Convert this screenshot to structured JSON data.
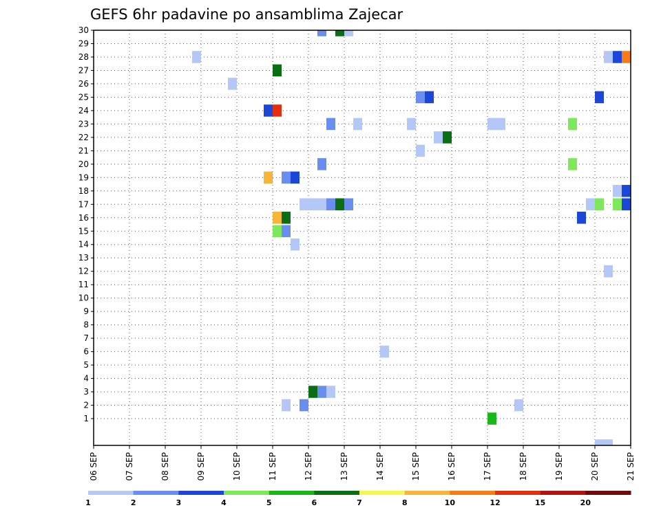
{
  "chart_data": {
    "type": "heatmap",
    "title": "GEFS 6hr padavine po ansamblima Zajecar",
    "xlabel": "",
    "ylabel": "",
    "x_tick_labels": [
      "06 SEP",
      "07 SEP",
      "08 SEP",
      "09 SEP",
      "10 SEP",
      "11 SEP",
      "12 SEP",
      "13 SEP",
      "14 SEP",
      "15 SEP",
      "16 SEP",
      "17 SEP",
      "18 SEP",
      "19 SEP",
      "20 SEP",
      "21 SEP"
    ],
    "xlim_days": [
      0,
      15
    ],
    "steps_per_day": 4,
    "y_tick_labels": [
      "1",
      "2",
      "3",
      "4",
      "5",
      "6",
      "7",
      "8",
      "9",
      "10",
      "11",
      "12",
      "13",
      "14",
      "15",
      "16",
      "17",
      "18",
      "19",
      "20",
      "21",
      "22",
      "23",
      "24",
      "25",
      "26",
      "27",
      "28",
      "29",
      "30"
    ],
    "ylim": [
      0,
      30
    ],
    "grid": true,
    "colorbar": {
      "position": "bottom",
      "colors": [
        "#b4c8f8",
        "#6a8ef0",
        "#1c46d8",
        "#7ce85a",
        "#18b818",
        "#0a6e12",
        "#f8f850",
        "#f8b438",
        "#f87c14",
        "#e03010",
        "#b41210",
        "#6e0a0a"
      ],
      "labels": [
        "1",
        "2",
        "3",
        "4",
        "5",
        "6",
        "7",
        "8",
        "10",
        "12",
        "15",
        "20"
      ]
    },
    "cells": [
      {
        "member": 30,
        "step": 25,
        "cat": 1
      },
      {
        "member": 30,
        "step": 27,
        "cat": 5
      },
      {
        "member": 30,
        "step": 28,
        "cat": 0
      },
      {
        "member": 28,
        "step": 11,
        "cat": 0
      },
      {
        "member": 28,
        "step": 57,
        "cat": 0
      },
      {
        "member": 28,
        "step": 58,
        "cat": 2
      },
      {
        "member": 28,
        "step": 59,
        "cat": 8
      },
      {
        "member": 27,
        "step": 20,
        "cat": 5
      },
      {
        "member": 26,
        "step": 15,
        "cat": 0
      },
      {
        "member": 25,
        "step": 36,
        "cat": 1
      },
      {
        "member": 25,
        "step": 37,
        "cat": 2
      },
      {
        "member": 25,
        "step": 56,
        "cat": 2
      },
      {
        "member": 24,
        "step": 19,
        "cat": 2
      },
      {
        "member": 24,
        "step": 20,
        "cat": 9
      },
      {
        "member": 23,
        "step": 26,
        "cat": 1
      },
      {
        "member": 23,
        "step": 29,
        "cat": 0
      },
      {
        "member": 23,
        "step": 35,
        "cat": 0
      },
      {
        "member": 23,
        "step": 44,
        "cat": 0
      },
      {
        "member": 23,
        "step": 45,
        "cat": 0
      },
      {
        "member": 23,
        "step": 53,
        "cat": 3
      },
      {
        "member": 22,
        "step": 38,
        "cat": 0
      },
      {
        "member": 22,
        "step": 39,
        "cat": 5
      },
      {
        "member": 21,
        "step": 36,
        "cat": 0
      },
      {
        "member": 20,
        "step": 25,
        "cat": 1
      },
      {
        "member": 20,
        "step": 53,
        "cat": 3
      },
      {
        "member": 19,
        "step": 19,
        "cat": 7
      },
      {
        "member": 19,
        "step": 21,
        "cat": 1
      },
      {
        "member": 19,
        "step": 22,
        "cat": 2
      },
      {
        "member": 18,
        "step": 58,
        "cat": 0
      },
      {
        "member": 18,
        "step": 59,
        "cat": 2
      },
      {
        "member": 17,
        "step": 23,
        "cat": 0
      },
      {
        "member": 17,
        "step": 24,
        "cat": 0
      },
      {
        "member": 17,
        "step": 25,
        "cat": 0
      },
      {
        "member": 17,
        "step": 26,
        "cat": 1
      },
      {
        "member": 17,
        "step": 27,
        "cat": 5
      },
      {
        "member": 17,
        "step": 28,
        "cat": 1
      },
      {
        "member": 17,
        "step": 55,
        "cat": 0
      },
      {
        "member": 17,
        "step": 56,
        "cat": 3
      },
      {
        "member": 17,
        "step": 58,
        "cat": 3
      },
      {
        "member": 17,
        "step": 59,
        "cat": 2
      },
      {
        "member": 16,
        "step": 20,
        "cat": 7
      },
      {
        "member": 16,
        "step": 21,
        "cat": 5
      },
      {
        "member": 16,
        "step": 54,
        "cat": 2
      },
      {
        "member": 15,
        "step": 20,
        "cat": 3
      },
      {
        "member": 15,
        "step": 21,
        "cat": 1
      },
      {
        "member": 14,
        "step": 22,
        "cat": 0
      },
      {
        "member": 12,
        "step": 57,
        "cat": 0
      },
      {
        "member": 6,
        "step": 32,
        "cat": 0
      },
      {
        "member": 3,
        "step": 24,
        "cat": 5
      },
      {
        "member": 3,
        "step": 25,
        "cat": 1
      },
      {
        "member": 3,
        "step": 26,
        "cat": 0
      },
      {
        "member": 2,
        "step": 21,
        "cat": 0
      },
      {
        "member": 2,
        "step": 23,
        "cat": 1
      },
      {
        "member": 2,
        "step": 47,
        "cat": 0
      },
      {
        "member": 1,
        "step": 44,
        "cat": 4
      },
      {
        "member": 0,
        "step": 56,
        "cat": 0
      },
      {
        "member": 0,
        "step": 57,
        "cat": 0
      }
    ]
  }
}
